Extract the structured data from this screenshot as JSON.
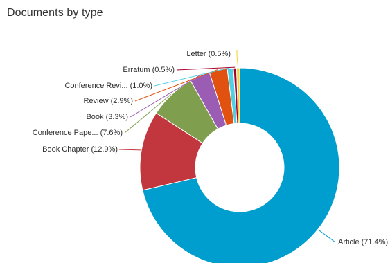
{
  "chart_data": {
    "type": "pie",
    "title": "Documents by type",
    "donut": true,
    "slices": [
      {
        "label": "Article (71.4%)",
        "value": 71.4,
        "color": "#009ECE"
      },
      {
        "label": "Book Chapter (12.9%)",
        "value": 12.9,
        "color": "#C1373D"
      },
      {
        "label": "Conference Pape... (7.6%)",
        "value": 7.6,
        "color": "#7F9F4F"
      },
      {
        "label": "Book (3.3%)",
        "value": 3.3,
        "color": "#9B5CB4"
      },
      {
        "label": "Review (2.9%)",
        "value": 2.9,
        "color": "#E1510F"
      },
      {
        "label": "Conference Revi... (1.0%)",
        "value": 1.0,
        "color": "#4FD1E5"
      },
      {
        "label": "Erratum (0.5%)",
        "value": 0.5,
        "color": "#A7002C"
      },
      {
        "label": "Letter (0.5%)",
        "value": 0.5,
        "color": "#F2D02E"
      }
    ]
  }
}
